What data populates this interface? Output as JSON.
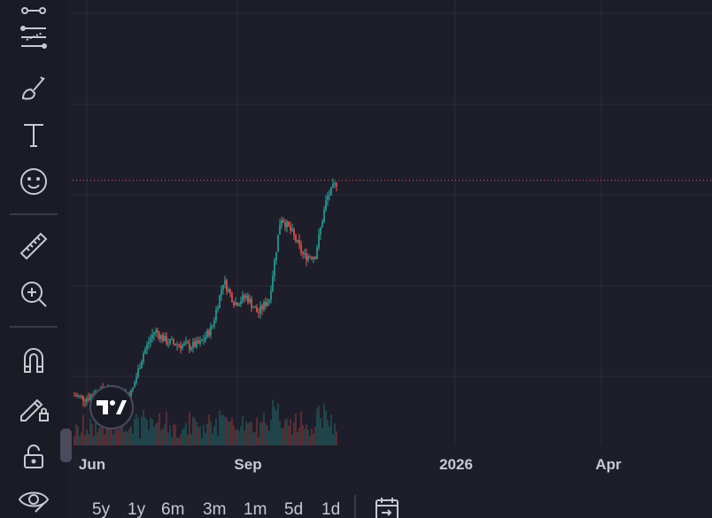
{
  "toolbar": {
    "tools": [
      {
        "name": "trend-line-tools-icon"
      },
      {
        "name": "fib-tools-icon"
      },
      {
        "name": "brush-tools-icon"
      },
      {
        "name": "text-tool-icon"
      },
      {
        "name": "emoji-icon"
      },
      {
        "name": "ruler-icon"
      },
      {
        "name": "zoom-in-icon"
      },
      {
        "name": "magnet-icon"
      },
      {
        "name": "lock-drawings-icon"
      },
      {
        "name": "unlock-icon"
      },
      {
        "name": "eye-icon"
      }
    ]
  },
  "time_axis": {
    "ticks": [
      "Jun",
      "Sep",
      "2026",
      "Apr"
    ]
  },
  "range_buttons": [
    "5y",
    "1y",
    "6m",
    "3m",
    "1m",
    "5d",
    "1d"
  ],
  "colors": {
    "background": "#1e1e2a",
    "grid": "#2b2b3a",
    "up": "#26a69a",
    "down": "#ef5350",
    "price_line": "#ef5350"
  },
  "chart_data": {
    "type": "candlestick",
    "x": [
      "2025-05-20",
      "2025-05-27",
      "2025-06-03",
      "2025-06-10",
      "2025-06-17",
      "2025-06-24",
      "2025-07-01",
      "2025-07-08",
      "2025-07-15",
      "2025-07-22",
      "2025-07-29",
      "2025-08-05",
      "2025-08-12",
      "2025-08-19",
      "2025-08-26",
      "2025-09-02",
      "2025-09-09",
      "2025-09-16",
      "2025-09-23",
      "2025-09-30",
      "2025-10-07",
      "2025-10-14",
      "2025-10-21",
      "2025-10-28"
    ],
    "close": [
      0.93,
      0.9,
      0.97,
      0.95,
      0.93,
      0.96,
      1.35,
      1.58,
      1.47,
      1.44,
      1.42,
      1.45,
      1.61,
      2.08,
      1.85,
      1.92,
      1.75,
      1.9,
      2.72,
      2.55,
      2.32,
      2.33,
      2.9,
      3.08
    ],
    "grid": true,
    "last_price_line": true
  }
}
